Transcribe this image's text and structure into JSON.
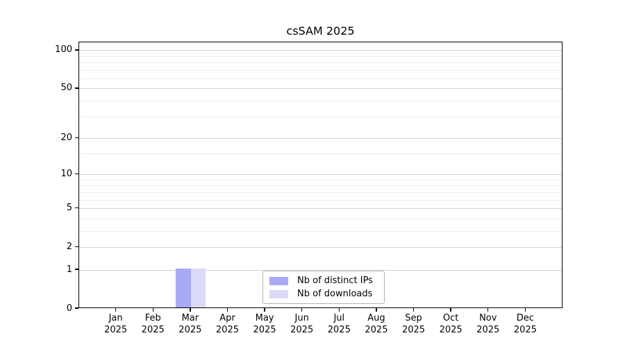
{
  "chart_data": {
    "type": "bar",
    "title": "csSAM 2025",
    "y_scale": "log1p",
    "grid": "horizontal",
    "categories": [
      "Jan",
      "Feb",
      "Mar",
      "Apr",
      "May",
      "Jun",
      "Jul",
      "Aug",
      "Sep",
      "Oct",
      "Nov",
      "Dec"
    ],
    "category_year": "2025",
    "series": [
      {
        "name": "Nb of distinct IPs",
        "color": "#a9a9f6",
        "values": [
          0,
          0,
          1,
          0,
          0,
          0,
          0,
          0,
          0,
          0,
          0,
          0
        ]
      },
      {
        "name": "Nb of downloads",
        "color": "#d9d9f8",
        "values": [
          0,
          0,
          1,
          0,
          0,
          0,
          0,
          0,
          0,
          0,
          0,
          0
        ]
      }
    ],
    "y_ticks": [
      0,
      1,
      2,
      5,
      10,
      20,
      50,
      100
    ],
    "y_minor_gridlines": [
      3,
      4,
      6,
      7,
      8,
      9,
      15,
      30,
      40,
      60,
      70,
      80,
      90
    ],
    "ylim": [
      0,
      116
    ],
    "legend_position": "inside-bottom-center",
    "colors": {
      "grid_major": "#d2d2d2",
      "grid_minor": "#ececec",
      "axis": "#000000",
      "legend_border": "#b3b3b3",
      "background": "#ffffff"
    }
  }
}
